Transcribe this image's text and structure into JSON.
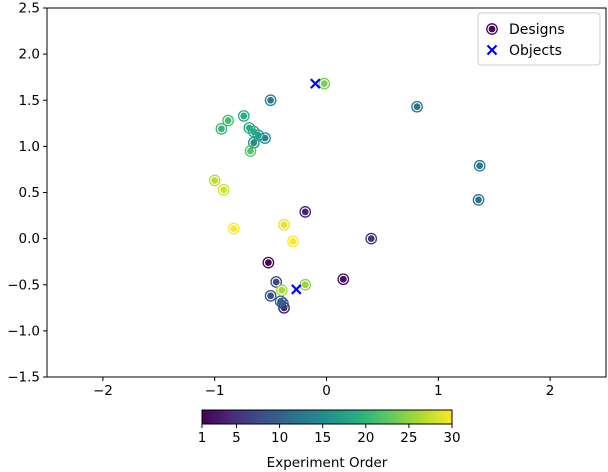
{
  "chart_data": {
    "type": "scatter",
    "title": "",
    "xlabel": "",
    "ylabel": "",
    "xlim": [
      -2.5,
      2.5
    ],
    "ylim": [
      -1.5,
      2.5
    ],
    "x_ticks": [
      -2,
      -1,
      0,
      1,
      2
    ],
    "y_ticks": [
      -1.5,
      -1.0,
      -0.5,
      0.0,
      0.5,
      1.0,
      1.5,
      2.0,
      2.5
    ],
    "x_tick_labels": [
      "−2",
      "−1",
      "0",
      "1",
      "2"
    ],
    "y_tick_labels": [
      "−1.5",
      "−1.0",
      "−0.5",
      "0.0",
      "0.5",
      "1.0",
      "1.5",
      "2.0",
      "2.5"
    ],
    "grid": false,
    "legend_position": "top-right",
    "colormap": "viridis",
    "series": [
      {
        "name": "Designs",
        "marker": "circle",
        "points": [
          {
            "x": -0.52,
            "y": -0.26,
            "order": 1
          },
          {
            "x": 0.15,
            "y": -0.44,
            "order": 2
          },
          {
            "x": -0.38,
            "y": -0.75,
            "order": 3
          },
          {
            "x": -0.19,
            "y": 0.29,
            "order": 4
          },
          {
            "x": 0.4,
            "y": 0.0,
            "order": 5
          },
          {
            "x": -0.45,
            "y": -0.47,
            "order": 7
          },
          {
            "x": -0.5,
            "y": -0.62,
            "order": 8
          },
          {
            "x": -0.39,
            "y": -0.7,
            "order": 9
          },
          {
            "x": -0.41,
            "y": -0.68,
            "order": 10
          },
          {
            "x": 0.81,
            "y": 1.43,
            "order": 12
          },
          {
            "x": 1.36,
            "y": 0.42,
            "order": 12
          },
          {
            "x": 1.37,
            "y": 0.79,
            "order": 13
          },
          {
            "x": -0.5,
            "y": 1.5,
            "order": 13
          },
          {
            "x": -0.55,
            "y": 1.09,
            "order": 14
          },
          {
            "x": -0.65,
            "y": 1.04,
            "order": 15
          },
          {
            "x": -0.61,
            "y": 1.12,
            "order": 17
          },
          {
            "x": -0.65,
            "y": 1.16,
            "order": 18
          },
          {
            "x": -0.69,
            "y": 1.2,
            "order": 19
          },
          {
            "x": -0.74,
            "y": 1.33,
            "order": 19
          },
          {
            "x": -0.94,
            "y": 1.19,
            "order": 20
          },
          {
            "x": -0.88,
            "y": 1.28,
            "order": 21
          },
          {
            "x": -0.68,
            "y": 0.95,
            "order": 22
          },
          {
            "x": -0.02,
            "y": 1.68,
            "order": 24
          },
          {
            "x": -0.19,
            "y": -0.5,
            "order": 25
          },
          {
            "x": -0.4,
            "y": -0.56,
            "order": 26
          },
          {
            "x": -1.0,
            "y": 0.63,
            "order": 27
          },
          {
            "x": -0.92,
            "y": 0.53,
            "order": 28
          },
          {
            "x": -0.38,
            "y": 0.15,
            "order": 29
          },
          {
            "x": -0.3,
            "y": -0.03,
            "order": 30
          },
          {
            "x": -0.83,
            "y": 0.11,
            "order": 30
          }
        ]
      },
      {
        "name": "Objects",
        "marker": "x",
        "color": "#0000ff",
        "points": [
          {
            "x": -0.1,
            "y": 1.68
          },
          {
            "x": -0.27,
            "y": -0.55
          }
        ]
      }
    ],
    "colorbar": {
      "label": "Experiment Order",
      "min": 1,
      "max": 30,
      "ticks": [
        1,
        5,
        10,
        15,
        20,
        25,
        30
      ],
      "tick_labels": [
        "1",
        "5",
        "10",
        "15",
        "20",
        "25",
        "30"
      ]
    }
  }
}
